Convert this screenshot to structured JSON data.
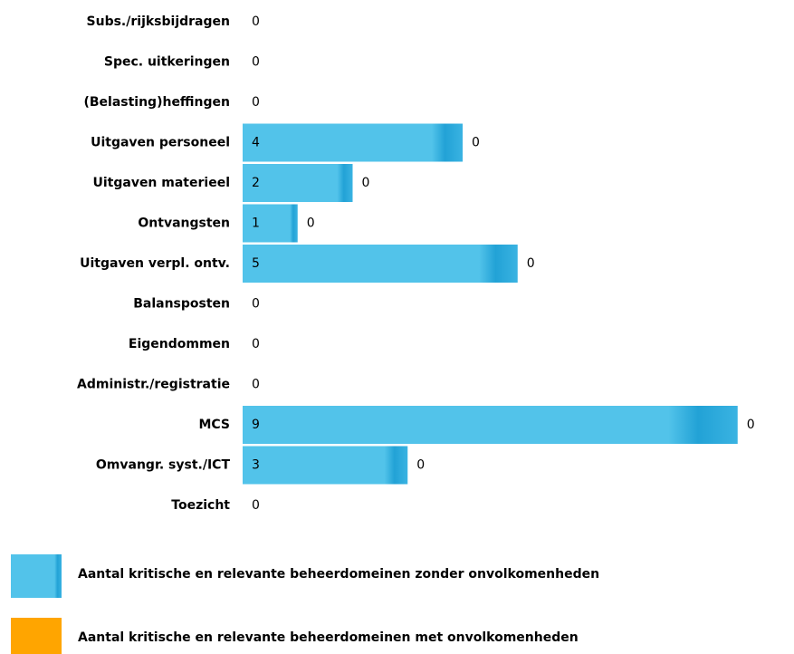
{
  "chart_data": {
    "type": "bar",
    "orientation": "horizontal",
    "stacked": true,
    "categories": [
      "Subs./rijksbijdragen",
      "Spec. uitkeringen",
      "(Belasting)heffingen",
      "Uitgaven personeel",
      "Uitgaven materieel",
      "Ontvangsten",
      "Uitgaven verpl. ontv.",
      "Balansposten",
      "Eigendommen",
      "Administr./registratie",
      "MCS",
      "Omvangr. syst./ICT",
      "Toezicht"
    ],
    "series": [
      {
        "name": "Aantal kritische en relevante beheerdomeinen zonder onvolkomenheden",
        "color": "#4fc1e9",
        "values": [
          0,
          0,
          0,
          4,
          2,
          1,
          5,
          0,
          0,
          0,
          9,
          3,
          0
        ]
      },
      {
        "name": "Aantal kritische en relevante beheerdomeinen met onvolkomenheden",
        "color": "#ffa500",
        "values": [
          0,
          0,
          0,
          0,
          0,
          0,
          0,
          0,
          0,
          0,
          0,
          0,
          0
        ]
      }
    ]
  }
}
